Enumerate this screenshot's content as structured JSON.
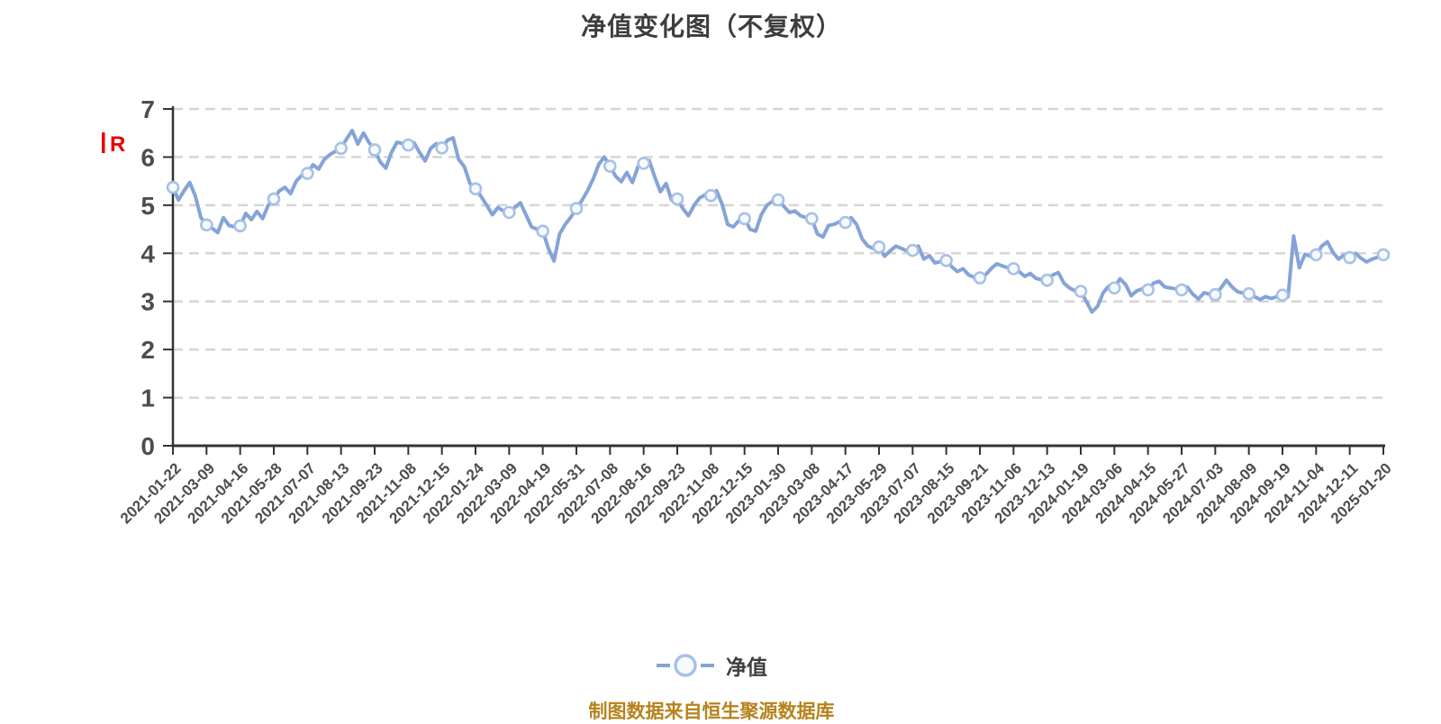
{
  "colors": {
    "line": "#85a3d8",
    "marker_fill": "#f7fafd",
    "marker_stroke": "#a8c0e6",
    "grid": "#d5d5d5",
    "axis": "#333333",
    "tick_text": "#4d4d4d",
    "title_text": "#3d3d3d",
    "source_text": "#b5831c",
    "annotation": "#e60000"
  },
  "chart_data": {
    "type": "line",
    "title": "净值变化图（不复权）",
    "xlabel": "",
    "ylabel": "",
    "ylim": [
      0,
      7
    ],
    "yticks": [
      0,
      1,
      2,
      3,
      4,
      5,
      6,
      7
    ],
    "grid": "dashed horizontal",
    "legend_position": "bottom",
    "source_note": "制图数据来自恒生聚源数据库",
    "annotations": [
      {
        "text": "R",
        "color": "#e60000",
        "position": "left-of-y-axis near value 6.2"
      }
    ],
    "categories": [
      "2021-01-22",
      "2021-03-09",
      "2021-04-16",
      "2021-05-28",
      "2021-07-07",
      "2021-08-13",
      "2021-09-23",
      "2021-11-08",
      "2021-12-15",
      "2022-01-24",
      "2022-03-09",
      "2022-04-19",
      "2022-05-31",
      "2022-07-08",
      "2022-08-16",
      "2022-09-23",
      "2022-11-08",
      "2022-12-15",
      "2023-01-30",
      "2023-03-08",
      "2023-04-17",
      "2023-05-29",
      "2023-07-07",
      "2023-08-15",
      "2023-09-21",
      "2023-11-06",
      "2023-12-13",
      "2024-01-19",
      "2024-03-06",
      "2024-04-15",
      "2024-05-27",
      "2024-07-03",
      "2024-08-09",
      "2024-09-19",
      "2024-11-04",
      "2024-12-11",
      "2025-01-20"
    ],
    "series": [
      {
        "name": "净值",
        "values_at_ticks": [
          5.37,
          4.59,
          4.57,
          5.13,
          5.66,
          6.18,
          6.15,
          6.25,
          6.19,
          5.34,
          4.85,
          4.46,
          4.93,
          5.81,
          5.87,
          5.13,
          5.2,
          4.72,
          5.11,
          4.72,
          4.64,
          4.13,
          4.06,
          3.85,
          3.49,
          3.68,
          3.44,
          3.21,
          3.28,
          3.24,
          3.24,
          3.14,
          3.16,
          3.13,
          3.97,
          3.91,
          3.97
        ],
        "samples_per_interval": 6,
        "dense_values": [
          5.37,
          5.11,
          5.3,
          5.47,
          5.19,
          4.74,
          4.59,
          4.52,
          4.43,
          4.74,
          4.58,
          4.55,
          4.57,
          4.83,
          4.7,
          4.87,
          4.72,
          5.0,
          5.13,
          5.3,
          5.37,
          5.24,
          5.5,
          5.62,
          5.66,
          5.84,
          5.75,
          5.95,
          6.05,
          6.12,
          6.18,
          6.38,
          6.55,
          6.27,
          6.5,
          6.3,
          6.15,
          5.9,
          5.77,
          6.1,
          6.31,
          6.28,
          6.25,
          6.3,
          6.1,
          5.92,
          6.18,
          6.28,
          6.19,
          6.35,
          6.4,
          5.95,
          5.8,
          5.45,
          5.34,
          5.18,
          5.0,
          4.8,
          4.95,
          4.88,
          4.85,
          4.95,
          5.05,
          4.8,
          4.55,
          4.5,
          4.46,
          4.1,
          3.84,
          4.4,
          4.6,
          4.75,
          4.93,
          5.1,
          5.3,
          5.55,
          5.85,
          6.0,
          5.81,
          5.6,
          5.49,
          5.68,
          5.47,
          5.8,
          5.87,
          5.93,
          5.58,
          5.28,
          5.45,
          5.1,
          5.13,
          4.93,
          4.78,
          5.0,
          5.15,
          5.22,
          5.2,
          5.3,
          5.02,
          4.6,
          4.55,
          4.68,
          4.72,
          4.5,
          4.46,
          4.8,
          5.0,
          5.08,
          5.11,
          4.98,
          4.85,
          4.88,
          4.78,
          4.74,
          4.72,
          4.4,
          4.34,
          4.58,
          4.6,
          4.66,
          4.64,
          4.74,
          4.6,
          4.3,
          4.15,
          4.1,
          4.13,
          3.94,
          4.05,
          4.15,
          4.1,
          4.05,
          4.06,
          4.15,
          3.88,
          3.95,
          3.8,
          3.83,
          3.85,
          3.72,
          3.62,
          3.68,
          3.55,
          3.5,
          3.49,
          3.55,
          3.68,
          3.78,
          3.74,
          3.7,
          3.68,
          3.62,
          3.52,
          3.58,
          3.48,
          3.45,
          3.44,
          3.55,
          3.6,
          3.38,
          3.28,
          3.22,
          3.21,
          3.0,
          2.78,
          2.9,
          3.18,
          3.32,
          3.28,
          3.47,
          3.35,
          3.12,
          3.22,
          3.26,
          3.24,
          3.38,
          3.42,
          3.3,
          3.28,
          3.26,
          3.24,
          3.3,
          3.15,
          3.05,
          3.18,
          3.15,
          3.14,
          3.28,
          3.44,
          3.3,
          3.2,
          3.17,
          3.16,
          3.1,
          3.04,
          3.1,
          3.06,
          3.1,
          3.13,
          3.1,
          4.36,
          3.7,
          3.98,
          3.94,
          3.97,
          4.15,
          4.24,
          4.02,
          3.88,
          3.96,
          3.91,
          4.0,
          3.9,
          3.82,
          3.88,
          3.92,
          3.97
        ]
      }
    ]
  }
}
